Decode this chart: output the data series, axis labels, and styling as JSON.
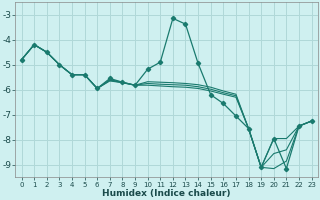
{
  "xlabel": "Humidex (Indice chaleur)",
  "bg_color": "#cff0f0",
  "grid_color": "#b0d8d8",
  "line_color": "#1a7a6e",
  "xlim": [
    -0.5,
    23.5
  ],
  "ylim": [
    -9.5,
    -2.5
  ],
  "yticks": [
    -9,
    -8,
    -7,
    -6,
    -5,
    -4,
    -3
  ],
  "xticks": [
    0,
    1,
    2,
    3,
    4,
    5,
    6,
    7,
    8,
    9,
    10,
    11,
    12,
    13,
    14,
    15,
    16,
    17,
    18,
    19,
    20,
    21,
    22,
    23
  ],
  "x": [
    0,
    1,
    2,
    3,
    4,
    5,
    6,
    7,
    8,
    9,
    10,
    11,
    12,
    13,
    14,
    15,
    16,
    17,
    18,
    19,
    20,
    21,
    22,
    23
  ],
  "line_main": [
    -4.8,
    -4.2,
    -4.5,
    -5.0,
    -5.4,
    -5.4,
    -5.95,
    -5.55,
    -5.7,
    -5.82,
    -5.18,
    -4.9,
    -3.15,
    -3.38,
    -4.95,
    -6.2,
    -6.55,
    -7.05,
    -7.55,
    -9.1,
    -7.95,
    -9.15,
    -7.45,
    -7.25
  ],
  "line2": [
    -4.8,
    -4.2,
    -4.5,
    -5.0,
    -5.4,
    -5.4,
    -5.95,
    -5.65,
    -5.72,
    -5.82,
    -5.82,
    -5.85,
    -5.88,
    -5.9,
    -5.95,
    -6.05,
    -6.18,
    -6.3,
    -7.55,
    -9.1,
    -9.15,
    -8.85,
    -7.45,
    -7.25
  ],
  "line3": [
    -4.8,
    -4.2,
    -4.5,
    -5.0,
    -5.4,
    -5.4,
    -5.95,
    -5.6,
    -5.7,
    -5.82,
    -5.68,
    -5.7,
    -5.72,
    -5.75,
    -5.8,
    -5.9,
    -6.05,
    -6.18,
    -7.55,
    -9.1,
    -7.95,
    -7.95,
    -7.45,
    -7.25
  ],
  "line4": [
    -4.8,
    -4.2,
    -4.5,
    -5.0,
    -5.4,
    -5.4,
    -5.95,
    -5.62,
    -5.72,
    -5.82,
    -5.75,
    -5.78,
    -5.8,
    -5.82,
    -5.88,
    -5.98,
    -6.12,
    -6.24,
    -7.55,
    -9.1,
    -8.55,
    -8.4,
    -7.45,
    -7.25
  ],
  "ytick_fontsize": 6.5,
  "xtick_fontsize": 5.0,
  "xlabel_fontsize": 6.5
}
